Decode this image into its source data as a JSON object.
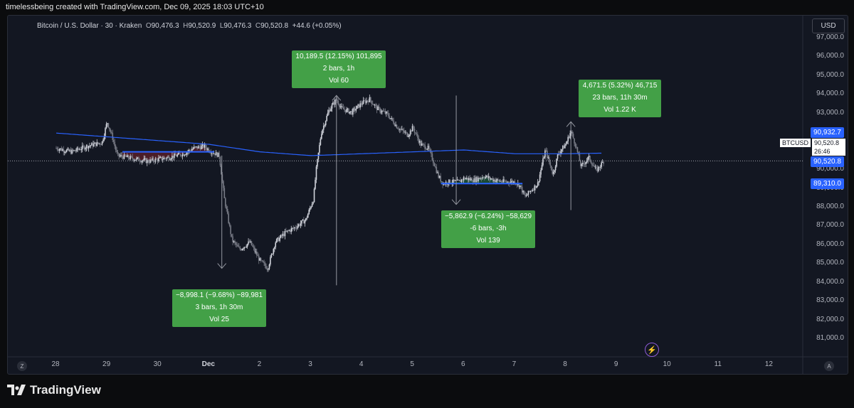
{
  "header": {
    "attribution": "timelessbeing created with TradingView.com, Dec 09, 2025 18:03 UTC+10"
  },
  "legend": {
    "symbol": "Bitcoin / U.S. Dollar · 30 · Kraken",
    "o_label": "O",
    "o": "90,476.3",
    "h_label": "H",
    "h": "90,520.9",
    "l_label": "L",
    "l": "90,476.3",
    "c_label": "C",
    "c": "90,520.8",
    "change": "+44.6 (+0.05%)"
  },
  "currency": "USD",
  "price_tags": {
    "ma_value": "90,932.7",
    "ticker": "BTCUSD",
    "last_price": "90,520.8",
    "countdown": "26:46",
    "last_price_blue": "90,520.8",
    "level": "89,310.0"
  },
  "callouts": [
    {
      "line1": "10,189.5 (12.15%) 101,895",
      "line2": "2 bars, 1h",
      "line3": "Vol 60"
    },
    {
      "line1": "4,671.5 (5.32%) 46,715",
      "line2": "23 bars, 11h 30m",
      "line3": "Vol 1.22 K"
    },
    {
      "line1": "−5,862.9 (−6.24%) −58,629",
      "line2": "-6 bars, -3h",
      "line3": "Vol 139"
    },
    {
      "line1": "−8,998.1 (−9.68%) −89,981",
      "line2": "3 bars, 1h 30m",
      "line3": "Vol 25"
    }
  ],
  "footer": {
    "brand": "TradingView",
    "z_button": "Z",
    "a_button": "A"
  },
  "colors": {
    "up": "#d1d4dc",
    "down": "#787b86",
    "ma": "#2962ff",
    "callout": "#43a047",
    "level_line": "#2962ff"
  },
  "chart_data": {
    "type": "candlestick",
    "symbol": "BTCUSD",
    "interval": "30",
    "x_tick_labels": [
      "28",
      "29",
      "30",
      "Dec",
      "2",
      "3",
      "4",
      "5",
      "6",
      "7",
      "8",
      "9",
      "10",
      "11",
      "12"
    ],
    "y_tick_labels": [
      "97,000.0",
      "96,000.0",
      "95,000.0",
      "94,000.0",
      "93,000.0",
      "92,000.0",
      "91,000.0",
      "90,000.0",
      "89,000.0",
      "88,000.0",
      "87,000.0",
      "86,000.0",
      "85,000.0",
      "84,000.0",
      "83,000.0",
      "82,000.0",
      "81,000.0"
    ],
    "ylim": [
      80500,
      97500
    ],
    "close_path": [
      [
        0,
        91200
      ],
      [
        0.3,
        91000
      ],
      [
        0.6,
        91300
      ],
      [
        0.9,
        91500
      ],
      [
        1.0,
        92600
      ],
      [
        1.1,
        91800
      ],
      [
        1.2,
        90800
      ],
      [
        1.4,
        90700
      ],
      [
        1.6,
        90600
      ],
      [
        1.8,
        90500
      ],
      [
        2.0,
        90600
      ],
      [
        2.2,
        90700
      ],
      [
        2.5,
        90900
      ],
      [
        2.7,
        91200
      ],
      [
        2.9,
        91300
      ],
      [
        3.05,
        91000
      ],
      [
        3.2,
        90800
      ],
      [
        3.3,
        88500
      ],
      [
        3.45,
        86300
      ],
      [
        3.6,
        85800
      ],
      [
        3.8,
        86200
      ],
      [
        4.0,
        85200
      ],
      [
        4.15,
        84800
      ],
      [
        4.3,
        86200
      ],
      [
        4.5,
        86700
      ],
      [
        4.7,
        87000
      ],
      [
        4.9,
        87400
      ],
      [
        5.05,
        88500
      ],
      [
        5.1,
        90000
      ],
      [
        5.2,
        92000
      ],
      [
        5.35,
        93200
      ],
      [
        5.5,
        93800
      ],
      [
        5.6,
        93300
      ],
      [
        5.8,
        93100
      ],
      [
        6.0,
        93600
      ],
      [
        6.15,
        93800
      ],
      [
        6.3,
        93300
      ],
      [
        6.5,
        93000
      ],
      [
        6.7,
        92300
      ],
      [
        6.9,
        91900
      ],
      [
        7.0,
        92300
      ],
      [
        7.15,
        91400
      ],
      [
        7.3,
        91200
      ],
      [
        7.4,
        90500
      ],
      [
        7.5,
        89700
      ],
      [
        7.6,
        89300
      ],
      [
        7.7,
        89400
      ],
      [
        7.9,
        89400
      ],
      [
        8.0,
        89600
      ],
      [
        8.2,
        89500
      ],
      [
        8.4,
        89700
      ],
      [
        8.6,
        89500
      ],
      [
        8.8,
        89400
      ],
      [
        9.0,
        89400
      ],
      [
        9.1,
        89200
      ],
      [
        9.2,
        88600
      ],
      [
        9.3,
        88900
      ],
      [
        9.45,
        89300
      ],
      [
        9.6,
        91100
      ],
      [
        9.75,
        89800
      ],
      [
        9.85,
        90900
      ],
      [
        10.0,
        91400
      ],
      [
        10.1,
        92100
      ],
      [
        10.2,
        91300
      ],
      [
        10.3,
        90200
      ],
      [
        10.45,
        90700
      ],
      [
        10.6,
        90000
      ],
      [
        10.75,
        90521
      ]
    ],
    "moving_average_path": [
      [
        0,
        92000
      ],
      [
        1.0,
        91800
      ],
      [
        2.0,
        91600
      ],
      [
        3.0,
        91400
      ],
      [
        4.0,
        91000
      ],
      [
        5.0,
        90800
      ],
      [
        6.0,
        90900
      ],
      [
        7.0,
        91000
      ],
      [
        8.0,
        91100
      ],
      [
        9.0,
        90900
      ],
      [
        10.0,
        90900
      ],
      [
        10.75,
        90932.7
      ]
    ],
    "last_price": 90520.8,
    "horizontal_levels": [
      {
        "from": 1.3,
        "to": 3.1,
        "price": 91000
      },
      {
        "from": 7.55,
        "to": 9.15,
        "price": 89310
      }
    ],
    "measurements": [
      {
        "x": 3.25,
        "from_price": 90800,
        "to_price": 84800,
        "direction": "down"
      },
      {
        "x": 5.5,
        "from_price": 83900,
        "to_price": 94000,
        "direction": "up"
      },
      {
        "x": 7.85,
        "from_price": 94000,
        "to_price": 88200,
        "direction": "down"
      },
      {
        "x": 10.1,
        "from_price": 87900,
        "to_price": 92600,
        "direction": "up"
      }
    ]
  }
}
